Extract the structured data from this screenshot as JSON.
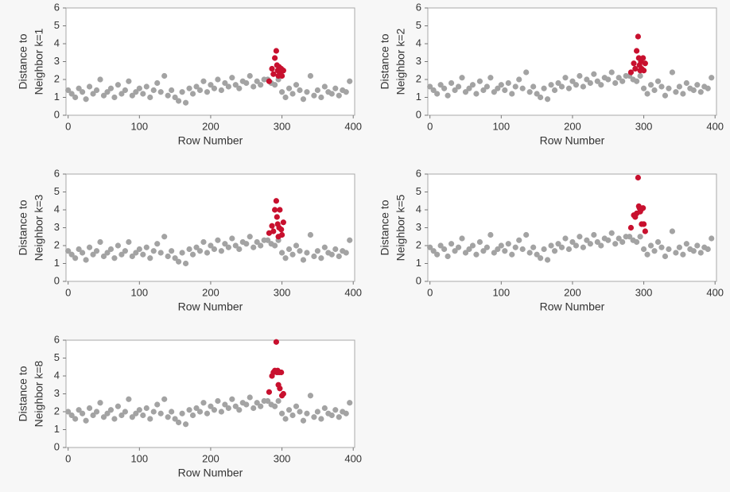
{
  "chart_data": [
    {
      "type": "scatter",
      "ylabel": [
        "Distance to",
        "Neighbor k=1"
      ],
      "xlabel": "Row Number",
      "xlim": [
        -3,
        402
      ],
      "ylim": [
        0,
        6
      ],
      "xticks": [
        0,
        100,
        200,
        300,
        400
      ],
      "yticks": [
        0,
        1,
        2,
        3,
        4,
        5,
        6
      ],
      "series": [
        {
          "color": "#a3a3a3",
          "x": [
            0,
            5,
            10,
            15,
            20,
            25,
            30,
            35,
            40,
            45,
            50,
            55,
            60,
            65,
            70,
            75,
            80,
            85,
            90,
            95,
            100,
            105,
            110,
            115,
            120,
            125,
            130,
            135,
            140,
            145,
            150,
            155,
            160,
            165,
            170,
            175,
            180,
            185,
            190,
            195,
            200,
            205,
            210,
            215,
            220,
            225,
            230,
            235,
            240,
            245,
            250,
            255,
            260,
            265,
            270,
            275,
            280,
            285,
            290,
            295,
            300,
            305,
            310,
            315,
            320,
            325,
            330,
            335,
            340,
            345,
            350,
            355,
            360,
            365,
            370,
            375,
            380,
            385,
            390,
            395
          ],
          "values": [
            1.4,
            1.2,
            1.0,
            1.5,
            1.3,
            0.9,
            1.6,
            1.2,
            1.4,
            2.0,
            1.1,
            1.3,
            1.5,
            1.0,
            1.7,
            1.2,
            1.4,
            1.9,
            1.1,
            1.3,
            1.5,
            1.2,
            1.6,
            1.0,
            1.4,
            1.8,
            1.3,
            2.2,
            1.1,
            1.4,
            1.0,
            0.8,
            1.3,
            0.7,
            1.5,
            1.2,
            1.6,
            1.4,
            1.9,
            1.3,
            1.7,
            1.5,
            2.0,
            1.4,
            1.8,
            1.6,
            2.1,
            1.7,
            1.5,
            1.9,
            1.8,
            2.2,
            1.6,
            1.9,
            1.7,
            2.0,
            2.0,
            1.8,
            1.7,
            2.0,
            1.3,
            1.0,
            1.5,
            1.2,
            1.7,
            1.4,
            0.9,
            1.3,
            2.2,
            1.1,
            1.4,
            1.0,
            1.6,
            1.3,
            1.2,
            1.5,
            1.1,
            1.4,
            1.3,
            1.9
          ]
        },
        {
          "color": "#c8102e",
          "x": [
            282,
            286,
            288,
            290,
            292,
            293,
            294,
            295,
            296,
            297,
            299,
            300,
            302
          ],
          "values": [
            1.9,
            2.6,
            2.3,
            3.2,
            3.6,
            2.8,
            2.5,
            2.2,
            2.7,
            2.4,
            2.6,
            2.2,
            2.5
          ]
        }
      ]
    },
    {
      "type": "scatter",
      "ylabel": [
        "Distance to",
        "Neighbor k=2"
      ],
      "xlabel": "Row Number",
      "xlim": [
        -3,
        402
      ],
      "ylim": [
        0,
        6
      ],
      "xticks": [
        0,
        100,
        200,
        300,
        400
      ],
      "yticks": [
        0,
        1,
        2,
        3,
        4,
        5,
        6
      ],
      "series": [
        {
          "color": "#a3a3a3",
          "x": [
            0,
            5,
            10,
            15,
            20,
            25,
            30,
            35,
            40,
            45,
            50,
            55,
            60,
            65,
            70,
            75,
            80,
            85,
            90,
            95,
            100,
            105,
            110,
            115,
            120,
            125,
            130,
            135,
            140,
            145,
            150,
            155,
            160,
            165,
            170,
            175,
            180,
            185,
            190,
            195,
            200,
            205,
            210,
            215,
            220,
            225,
            230,
            235,
            240,
            245,
            250,
            255,
            260,
            265,
            270,
            275,
            280,
            285,
            290,
            295,
            300,
            305,
            310,
            315,
            320,
            325,
            330,
            335,
            340,
            345,
            350,
            355,
            360,
            365,
            370,
            375,
            380,
            385,
            390,
            395
          ],
          "values": [
            1.6,
            1.4,
            1.2,
            1.7,
            1.5,
            1.1,
            1.8,
            1.4,
            1.6,
            2.1,
            1.3,
            1.5,
            1.7,
            1.2,
            1.9,
            1.4,
            1.6,
            2.1,
            1.3,
            1.5,
            1.7,
            1.4,
            1.8,
            1.2,
            1.6,
            2.0,
            1.5,
            2.4,
            1.3,
            1.6,
            1.2,
            1.0,
            1.5,
            0.9,
            1.7,
            1.4,
            1.8,
            1.6,
            2.1,
            1.5,
            1.9,
            1.7,
            2.2,
            1.6,
            2.0,
            1.8,
            2.3,
            1.9,
            1.7,
            2.1,
            2.0,
            2.4,
            1.8,
            2.1,
            1.9,
            2.2,
            2.2,
            2.0,
            1.9,
            2.2,
            1.5,
            1.2,
            1.7,
            1.4,
            1.9,
            1.6,
            1.1,
            1.5,
            2.4,
            1.3,
            1.6,
            1.2,
            1.8,
            1.5,
            1.4,
            1.7,
            1.3,
            1.6,
            1.5,
            2.1
          ]
        },
        {
          "color": "#c8102e",
          "x": [
            282,
            286,
            288,
            290,
            292,
            293,
            294,
            295,
            296,
            297,
            299,
            300,
            302
          ],
          "values": [
            2.4,
            2.9,
            2.6,
            3.6,
            4.4,
            3.2,
            2.8,
            2.5,
            3.0,
            2.6,
            3.2,
            2.5,
            2.9
          ]
        }
      ]
    },
    {
      "type": "scatter",
      "ylabel": [
        "Distance to",
        "Neighbor k=3"
      ],
      "xlabel": "Row Number",
      "xlim": [
        -3,
        402
      ],
      "ylim": [
        0,
        6
      ],
      "xticks": [
        0,
        100,
        200,
        300,
        400
      ],
      "yticks": [
        0,
        1,
        2,
        3,
        4,
        5,
        6
      ],
      "series": [
        {
          "color": "#a3a3a3",
          "x": [
            0,
            5,
            10,
            15,
            20,
            25,
            30,
            35,
            40,
            45,
            50,
            55,
            60,
            65,
            70,
            75,
            80,
            85,
            90,
            95,
            100,
            105,
            110,
            115,
            120,
            125,
            130,
            135,
            140,
            145,
            150,
            155,
            160,
            165,
            170,
            175,
            180,
            185,
            190,
            195,
            200,
            205,
            210,
            215,
            220,
            225,
            230,
            235,
            240,
            245,
            250,
            255,
            260,
            265,
            270,
            275,
            280,
            285,
            290,
            295,
            300,
            305,
            310,
            315,
            320,
            325,
            330,
            335,
            340,
            345,
            350,
            355,
            360,
            365,
            370,
            375,
            380,
            385,
            390,
            395
          ],
          "values": [
            1.7,
            1.5,
            1.3,
            1.8,
            1.6,
            1.2,
            1.9,
            1.5,
            1.7,
            2.2,
            1.4,
            1.6,
            1.8,
            1.3,
            2.0,
            1.5,
            1.7,
            2.2,
            1.4,
            1.6,
            1.8,
            1.5,
            1.9,
            1.3,
            1.7,
            2.1,
            1.6,
            2.5,
            1.4,
            1.7,
            1.3,
            1.1,
            1.6,
            1.0,
            1.8,
            1.5,
            1.9,
            1.7,
            2.2,
            1.6,
            2.0,
            1.8,
            2.3,
            1.7,
            2.1,
            1.9,
            2.4,
            2.0,
            1.8,
            2.2,
            2.1,
            2.5,
            1.9,
            2.2,
            2.0,
            2.3,
            2.3,
            2.1,
            2.0,
            2.3,
            1.6,
            1.3,
            1.8,
            1.5,
            2.0,
            1.7,
            1.2,
            1.6,
            2.6,
            1.4,
            1.7,
            1.3,
            1.9,
            1.6,
            1.5,
            1.8,
            1.4,
            1.7,
            1.6,
            2.3
          ]
        },
        {
          "color": "#c8102e",
          "x": [
            282,
            286,
            288,
            290,
            292,
            293,
            294,
            295,
            296,
            297,
            299,
            300,
            302
          ],
          "values": [
            2.7,
            3.1,
            2.8,
            4.0,
            4.5,
            3.6,
            3.2,
            2.5,
            3.0,
            4.0,
            2.9,
            2.6,
            3.3
          ]
        }
      ]
    },
    {
      "type": "scatter",
      "ylabel": [
        "Distance to",
        "Neighbor k=5"
      ],
      "xlabel": "Row Number",
      "xlim": [
        -3,
        402
      ],
      "ylim": [
        0,
        6
      ],
      "xticks": [
        0,
        100,
        200,
        300,
        400
      ],
      "yticks": [
        0,
        1,
        2,
        3,
        4,
        5,
        6
      ],
      "series": [
        {
          "color": "#a3a3a3",
          "x": [
            0,
            5,
            10,
            15,
            20,
            25,
            30,
            35,
            40,
            45,
            50,
            55,
            60,
            65,
            70,
            75,
            80,
            85,
            90,
            95,
            100,
            105,
            110,
            115,
            120,
            125,
            130,
            135,
            140,
            145,
            150,
            155,
            160,
            165,
            170,
            175,
            180,
            185,
            190,
            195,
            200,
            205,
            210,
            215,
            220,
            225,
            230,
            235,
            240,
            245,
            250,
            255,
            260,
            265,
            270,
            275,
            280,
            285,
            290,
            295,
            300,
            305,
            310,
            315,
            320,
            325,
            330,
            335,
            340,
            345,
            350,
            355,
            360,
            365,
            370,
            375,
            380,
            385,
            390,
            395
          ],
          "values": [
            1.9,
            1.7,
            1.5,
            2.0,
            1.8,
            1.4,
            2.1,
            1.7,
            1.9,
            2.4,
            1.6,
            1.8,
            2.0,
            1.5,
            2.2,
            1.7,
            1.9,
            2.6,
            1.6,
            1.8,
            2.0,
            1.7,
            2.1,
            1.5,
            1.9,
            2.3,
            1.8,
            2.6,
            1.6,
            1.9,
            1.5,
            1.3,
            1.8,
            1.2,
            2.0,
            1.7,
            2.1,
            1.9,
            2.4,
            1.8,
            2.2,
            2.0,
            2.5,
            1.9,
            2.3,
            2.1,
            2.6,
            2.2,
            2.0,
            2.4,
            2.3,
            2.7,
            2.1,
            2.4,
            2.2,
            2.5,
            2.5,
            2.3,
            2.2,
            2.5,
            1.8,
            1.5,
            2.0,
            1.7,
            2.2,
            1.9,
            1.4,
            1.8,
            2.8,
            1.6,
            1.9,
            1.5,
            2.1,
            1.8,
            1.7,
            2.0,
            1.6,
            1.9,
            1.8,
            2.4
          ]
        },
        {
          "color": "#c8102e",
          "x": [
            282,
            286,
            288,
            290,
            292,
            293,
            294,
            295,
            296,
            297,
            299,
            300,
            302
          ],
          "values": [
            3.0,
            3.7,
            3.6,
            3.8,
            5.8,
            4.2,
            4.1,
            3.9,
            4.0,
            3.2,
            4.1,
            3.2,
            2.8
          ]
        }
      ]
    },
    {
      "type": "scatter",
      "ylabel": [
        "Distance to",
        "Neighbor k=8"
      ],
      "xlabel": "Row Number",
      "xlim": [
        -3,
        402
      ],
      "ylim": [
        0,
        6
      ],
      "xticks": [
        0,
        100,
        200,
        300,
        400
      ],
      "yticks": [
        0,
        1,
        2,
        3,
        4,
        5,
        6
      ],
      "series": [
        {
          "color": "#a3a3a3",
          "x": [
            0,
            5,
            10,
            15,
            20,
            25,
            30,
            35,
            40,
            45,
            50,
            55,
            60,
            65,
            70,
            75,
            80,
            85,
            90,
            95,
            100,
            105,
            110,
            115,
            120,
            125,
            130,
            135,
            140,
            145,
            150,
            155,
            160,
            165,
            170,
            175,
            180,
            185,
            190,
            195,
            200,
            205,
            210,
            215,
            220,
            225,
            230,
            235,
            240,
            245,
            250,
            255,
            260,
            265,
            270,
            275,
            280,
            285,
            290,
            295,
            300,
            305,
            310,
            315,
            320,
            325,
            330,
            335,
            340,
            345,
            350,
            355,
            360,
            365,
            370,
            375,
            380,
            385,
            390,
            395
          ],
          "values": [
            2.0,
            1.8,
            1.6,
            2.1,
            1.9,
            1.5,
            2.2,
            1.8,
            2.0,
            2.5,
            1.7,
            1.9,
            2.1,
            1.6,
            2.3,
            1.8,
            2.0,
            2.7,
            1.7,
            1.9,
            2.1,
            1.8,
            2.2,
            1.6,
            2.0,
            2.4,
            1.9,
            2.7,
            1.7,
            2.0,
            1.6,
            1.4,
            1.9,
            1.3,
            2.1,
            1.8,
            2.2,
            2.0,
            2.5,
            1.9,
            2.3,
            2.1,
            2.6,
            2.0,
            2.4,
            2.2,
            2.7,
            2.3,
            2.1,
            2.5,
            2.4,
            2.8,
            2.2,
            2.5,
            2.3,
            2.6,
            2.6,
            2.4,
            2.3,
            2.6,
            1.9,
            1.6,
            2.1,
            1.8,
            2.3,
            2.0,
            1.5,
            1.9,
            2.9,
            1.7,
            2.0,
            1.6,
            2.2,
            1.9,
            1.8,
            2.1,
            1.7,
            2.0,
            1.9,
            2.5
          ]
        },
        {
          "color": "#c8102e",
          "x": [
            282,
            286,
            288,
            290,
            292,
            293,
            294,
            295,
            296,
            297,
            299,
            300,
            302
          ],
          "values": [
            3.1,
            4.0,
            4.2,
            4.3,
            5.9,
            4.2,
            4.3,
            3.5,
            4.2,
            3.3,
            4.2,
            2.9,
            3.0
          ]
        }
      ]
    }
  ]
}
